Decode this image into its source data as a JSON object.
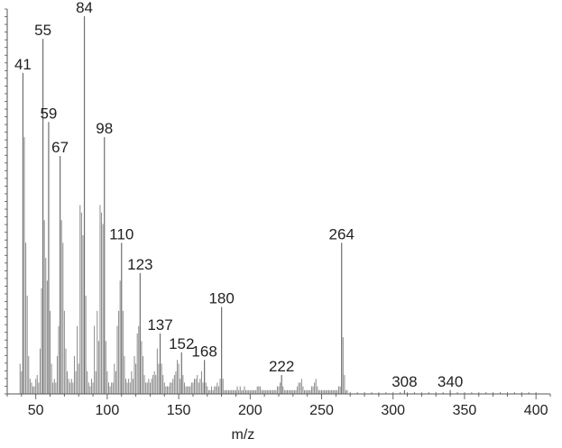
{
  "chart_data": {
    "type": "bar",
    "xlabel": "m/z",
    "ylabel": "",
    "title": "",
    "xlim": [
      30,
      410
    ],
    "ylim": [
      0,
      100
    ],
    "x_ticks": [
      50,
      100,
      150,
      200,
      250,
      300,
      350,
      400
    ],
    "grid": false,
    "colors": {
      "peaks": "#8a8a8a",
      "axis": "#555555",
      "text": "#222222"
    },
    "labeled_peaks": [
      {
        "mz": 41,
        "intensity": 85,
        "label": "41"
      },
      {
        "mz": 55,
        "intensity": 94,
        "label": "55"
      },
      {
        "mz": 59,
        "intensity": 72,
        "label": "59"
      },
      {
        "mz": 67,
        "intensity": 63,
        "label": "67"
      },
      {
        "mz": 84,
        "intensity": 100,
        "label": "84"
      },
      {
        "mz": 98,
        "intensity": 68,
        "label": "98"
      },
      {
        "mz": 110,
        "intensity": 40,
        "label": "110"
      },
      {
        "mz": 123,
        "intensity": 32,
        "label": "123"
      },
      {
        "mz": 137,
        "intensity": 16,
        "label": "137"
      },
      {
        "mz": 152,
        "intensity": 11,
        "label": "152"
      },
      {
        "mz": 168,
        "intensity": 9,
        "label": "168"
      },
      {
        "mz": 180,
        "intensity": 23,
        "label": "180"
      },
      {
        "mz": 222,
        "intensity": 5,
        "label": "222"
      },
      {
        "mz": 264,
        "intensity": 40,
        "label": "264"
      },
      {
        "mz": 308,
        "intensity": 1,
        "label": "308"
      },
      {
        "mz": 340,
        "intensity": 1,
        "label": "340"
      }
    ],
    "minor_peaks": [
      [
        39,
        8
      ],
      [
        40,
        6
      ],
      [
        42,
        68
      ],
      [
        43,
        40
      ],
      [
        44,
        26
      ],
      [
        45,
        10
      ],
      [
        46,
        4
      ],
      [
        47,
        3
      ],
      [
        48,
        2
      ],
      [
        49,
        2
      ],
      [
        50,
        4
      ],
      [
        51,
        5
      ],
      [
        52,
        3
      ],
      [
        53,
        12
      ],
      [
        54,
        28
      ],
      [
        56,
        46
      ],
      [
        57,
        36
      ],
      [
        58,
        30
      ],
      [
        60,
        22
      ],
      [
        61,
        8
      ],
      [
        62,
        3
      ],
      [
        63,
        4
      ],
      [
        64,
        3
      ],
      [
        65,
        10
      ],
      [
        66,
        18
      ],
      [
        68,
        46
      ],
      [
        69,
        40
      ],
      [
        70,
        22
      ],
      [
        71,
        12
      ],
      [
        72,
        6
      ],
      [
        73,
        4
      ],
      [
        74,
        3
      ],
      [
        75,
        4
      ],
      [
        76,
        3
      ],
      [
        77,
        10
      ],
      [
        78,
        6
      ],
      [
        79,
        18
      ],
      [
        80,
        8
      ],
      [
        81,
        50
      ],
      [
        82,
        48
      ],
      [
        83,
        42
      ],
      [
        85,
        26
      ],
      [
        86,
        6
      ],
      [
        87,
        3
      ],
      [
        88,
        2
      ],
      [
        89,
        4
      ],
      [
        90,
        3
      ],
      [
        91,
        18
      ],
      [
        92,
        6
      ],
      [
        93,
        22
      ],
      [
        94,
        14
      ],
      [
        95,
        50
      ],
      [
        96,
        48
      ],
      [
        97,
        45
      ],
      [
        99,
        14
      ],
      [
        100,
        6
      ],
      [
        101,
        3
      ],
      [
        102,
        2
      ],
      [
        103,
        3
      ],
      [
        104,
        3
      ],
      [
        105,
        8
      ],
      [
        106,
        6
      ],
      [
        107,
        18
      ],
      [
        108,
        22
      ],
      [
        109,
        30
      ],
      [
        111,
        22
      ],
      [
        112,
        10
      ],
      [
        113,
        4
      ],
      [
        114,
        3
      ],
      [
        115,
        4
      ],
      [
        116,
        3
      ],
      [
        117,
        6
      ],
      [
        118,
        4
      ],
      [
        119,
        10
      ],
      [
        120,
        8
      ],
      [
        121,
        16
      ],
      [
        122,
        18
      ],
      [
        124,
        14
      ],
      [
        125,
        10
      ],
      [
        126,
        5
      ],
      [
        127,
        3
      ],
      [
        128,
        3
      ],
      [
        129,
        4
      ],
      [
        130,
        3
      ],
      [
        131,
        4
      ],
      [
        132,
        5
      ],
      [
        133,
        6
      ],
      [
        134,
        5
      ],
      [
        135,
        12
      ],
      [
        136,
        8
      ],
      [
        138,
        8
      ],
      [
        139,
        5
      ],
      [
        140,
        3
      ],
      [
        141,
        2
      ],
      [
        142,
        2
      ],
      [
        143,
        2
      ],
      [
        144,
        3
      ],
      [
        145,
        3
      ],
      [
        146,
        4
      ],
      [
        147,
        5
      ],
      [
        148,
        6
      ],
      [
        149,
        9
      ],
      [
        150,
        8
      ],
      [
        151,
        4
      ],
      [
        153,
        5
      ],
      [
        154,
        3
      ],
      [
        155,
        2
      ],
      [
        156,
        2
      ],
      [
        157,
        2
      ],
      [
        158,
        2
      ],
      [
        159,
        3
      ],
      [
        160,
        3
      ],
      [
        161,
        4
      ],
      [
        162,
        4
      ],
      [
        163,
        5
      ],
      [
        164,
        3
      ],
      [
        165,
        4
      ],
      [
        166,
        6
      ],
      [
        167,
        3
      ],
      [
        169,
        3
      ],
      [
        170,
        2
      ],
      [
        171,
        1
      ],
      [
        172,
        1
      ],
      [
        173,
        2
      ],
      [
        174,
        1
      ],
      [
        175,
        2
      ],
      [
        176,
        2
      ],
      [
        177,
        3
      ],
      [
        178,
        2
      ],
      [
        179,
        4
      ],
      [
        181,
        4
      ],
      [
        182,
        1
      ],
      [
        183,
        1
      ],
      [
        184,
        1
      ],
      [
        185,
        1
      ],
      [
        186,
        1
      ],
      [
        187,
        1
      ],
      [
        188,
        1
      ],
      [
        189,
        1
      ],
      [
        190,
        1
      ],
      [
        191,
        2
      ],
      [
        192,
        1
      ],
      [
        193,
        2
      ],
      [
        194,
        1
      ],
      [
        195,
        1
      ],
      [
        196,
        2
      ],
      [
        197,
        1
      ],
      [
        198,
        1
      ],
      [
        199,
        1
      ],
      [
        200,
        1
      ],
      [
        201,
        1
      ],
      [
        202,
        1
      ],
      [
        203,
        1
      ],
      [
        204,
        1
      ],
      [
        205,
        2
      ],
      [
        206,
        2
      ],
      [
        207,
        2
      ],
      [
        208,
        1
      ],
      [
        209,
        1
      ],
      [
        210,
        1
      ],
      [
        211,
        1
      ],
      [
        212,
        1
      ],
      [
        213,
        1
      ],
      [
        214,
        1
      ],
      [
        215,
        1
      ],
      [
        216,
        1
      ],
      [
        217,
        1
      ],
      [
        218,
        1
      ],
      [
        219,
        2
      ],
      [
        220,
        2
      ],
      [
        221,
        3
      ],
      [
        223,
        2
      ],
      [
        224,
        1
      ],
      [
        225,
        1
      ],
      [
        226,
        1
      ],
      [
        227,
        1
      ],
      [
        228,
        1
      ],
      [
        229,
        1
      ],
      [
        230,
        1
      ],
      [
        231,
        1
      ],
      [
        232,
        1
      ],
      [
        233,
        2
      ],
      [
        234,
        3
      ],
      [
        235,
        3
      ],
      [
        236,
        4
      ],
      [
        237,
        2
      ],
      [
        238,
        1
      ],
      [
        239,
        1
      ],
      [
        240,
        1
      ],
      [
        241,
        1
      ],
      [
        242,
        1
      ],
      [
        243,
        2
      ],
      [
        244,
        2
      ],
      [
        245,
        3
      ],
      [
        246,
        4
      ],
      [
        247,
        2
      ],
      [
        248,
        1
      ],
      [
        249,
        1
      ],
      [
        250,
        1
      ],
      [
        251,
        1
      ],
      [
        252,
        1
      ],
      [
        253,
        1
      ],
      [
        254,
        1
      ],
      [
        255,
        1
      ],
      [
        256,
        1
      ],
      [
        257,
        1
      ],
      [
        258,
        1
      ],
      [
        259,
        1
      ],
      [
        260,
        1
      ],
      [
        261,
        1
      ],
      [
        262,
        2
      ],
      [
        263,
        2
      ],
      [
        265,
        15
      ],
      [
        266,
        5
      ],
      [
        267,
        1
      ],
      [
        268,
        1
      ],
      [
        270,
        0.5
      ],
      [
        275,
        0.5
      ],
      [
        280,
        0.5
      ],
      [
        285,
        0.5
      ],
      [
        290,
        0.5
      ],
      [
        295,
        0.5
      ],
      [
        300,
        0.5
      ],
      [
        305,
        0.5
      ],
      [
        310,
        0.5
      ],
      [
        315,
        0.5
      ],
      [
        320,
        0.5
      ],
      [
        325,
        0.5
      ],
      [
        330,
        0.5
      ],
      [
        335,
        0.5
      ],
      [
        345,
        0.5
      ],
      [
        350,
        0.5
      ],
      [
        355,
        0.5
      ],
      [
        360,
        0.5
      ],
      [
        365,
        0.5
      ],
      [
        370,
        0.5
      ],
      [
        375,
        0.5
      ],
      [
        380,
        0.5
      ],
      [
        385,
        0.5
      ],
      [
        390,
        0.5
      ],
      [
        395,
        0.5
      ],
      [
        400,
        0.5
      ]
    ]
  }
}
